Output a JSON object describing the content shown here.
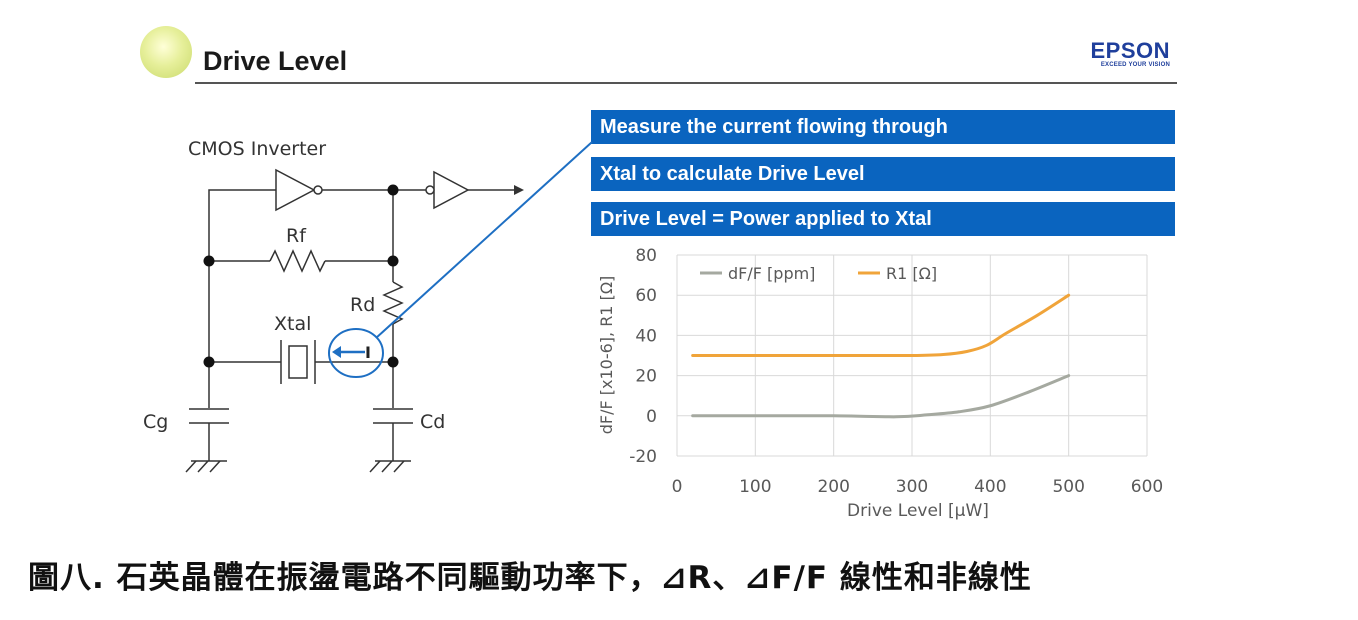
{
  "slide": {
    "title": "Drive Level",
    "brand": {
      "name": "EPSON",
      "tagline": "EXCEED YOUR VISION"
    },
    "banners": [
      "Measure the current flowing through",
      "Xtal to calculate Drive Level",
      "Drive Level = Power applied to Xtal"
    ]
  },
  "circuit": {
    "title": "CMOS Inverter",
    "labels": {
      "rf": "Rf",
      "rd": "Rd",
      "xtal": "Xtal",
      "cg": "Cg",
      "cd": "Cd",
      "current": "I"
    }
  },
  "chart_data": {
    "type": "line",
    "title": "",
    "xlabel": "Drive Level [μW]",
    "ylabel": "dF/F [x10-6], R1 [Ω]",
    "xlim": [
      0,
      600
    ],
    "ylim": [
      -20,
      80
    ],
    "xticks": [
      0,
      100,
      200,
      300,
      400,
      500,
      600
    ],
    "yticks": [
      -20,
      0,
      20,
      40,
      60,
      80
    ],
    "grid": true,
    "legend_position": "top-left",
    "series": [
      {
        "name": "dF/F [ppm]",
        "color": "#a5a9a0",
        "x": [
          20,
          100,
          200,
          280,
          320,
          360,
          400,
          450,
          500
        ],
        "y": [
          0,
          0,
          0,
          -0.5,
          0.5,
          2,
          5,
          12,
          20
        ]
      },
      {
        "name": "R1 [Ω]",
        "color": "#f0a43a",
        "x": [
          20,
          100,
          200,
          300,
          340,
          370,
          395,
          420,
          460,
          500
        ],
        "y": [
          30,
          30,
          30,
          30,
          30.5,
          32,
          35,
          41,
          50,
          60
        ]
      }
    ]
  },
  "caption": "圖八. 石英晶體在振盪電路不同驅動功率下，⊿R、⊿F/F 線性和非線性"
}
